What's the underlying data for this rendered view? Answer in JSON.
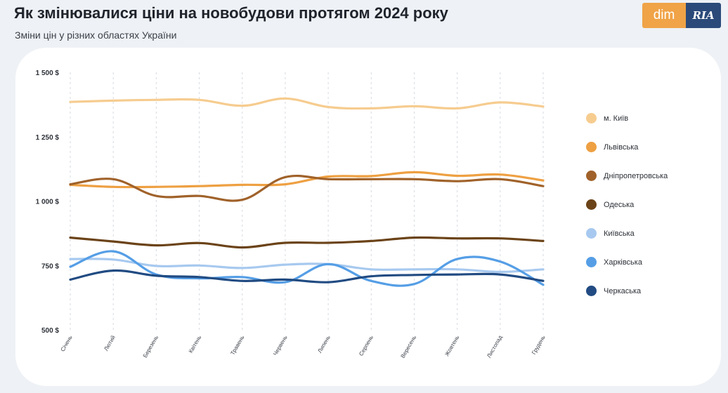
{
  "header": {
    "title": "Як змінювалися ціни на новобудови протягом 2024 року",
    "subtitle": "Зміни цін у різних областях України"
  },
  "logo": {
    "left_text": "dim",
    "right_text": "RIA"
  },
  "colors": {
    "background": "#eef1f5",
    "card": "#ffffff",
    "grid": "#d6dae0"
  },
  "chart_data": {
    "type": "line",
    "categories": [
      "Січень",
      "Лютий",
      "Березень",
      "Квітень",
      "Травень",
      "Червень",
      "Липень",
      "Серпень",
      "Вересень",
      "Жовтень",
      "Листопад",
      "Грудень"
    ],
    "y_ticks": [
      "1 500 $",
      "1 250 $",
      "1 000 $",
      "750 $",
      "500 $"
    ],
    "y_tick_values": [
      1500,
      1250,
      1000,
      750,
      500
    ],
    "ylim": [
      500,
      1500
    ],
    "grid": "vertical dashed",
    "legend_position": "right",
    "series": [
      {
        "name": "м. Київ",
        "color": "#f6cc8f",
        "values": [
          1385,
          1390,
          1393,
          1393,
          1370,
          1398,
          1365,
          1360,
          1368,
          1360,
          1383,
          1367
        ]
      },
      {
        "name": "Львівська",
        "color": "#eea042",
        "values": [
          1063,
          1055,
          1055,
          1058,
          1063,
          1065,
          1095,
          1097,
          1112,
          1098,
          1103,
          1080
        ]
      },
      {
        "name": "Дніпропетровська",
        "color": "#a0622a",
        "values": [
          1065,
          1085,
          1020,
          1020,
          1005,
          1093,
          1085,
          1085,
          1085,
          1077,
          1085,
          1058
        ]
      },
      {
        "name": "Одеська",
        "color": "#6b4318",
        "values": [
          858,
          843,
          828,
          837,
          820,
          838,
          838,
          845,
          858,
          855,
          855,
          845
        ]
      },
      {
        "name": "Київська",
        "color": "#a7c9ef",
        "values": [
          775,
          773,
          748,
          750,
          740,
          753,
          755,
          735,
          735,
          735,
          725,
          735
        ]
      },
      {
        "name": "Харківська",
        "color": "#559ee6",
        "values": [
          745,
          805,
          715,
          700,
          705,
          685,
          755,
          690,
          678,
          775,
          765,
          675
        ]
      },
      {
        "name": "Черкаська",
        "color": "#214b82",
        "values": [
          695,
          730,
          710,
          705,
          690,
          695,
          685,
          708,
          713,
          715,
          715,
          690
        ]
      }
    ]
  }
}
